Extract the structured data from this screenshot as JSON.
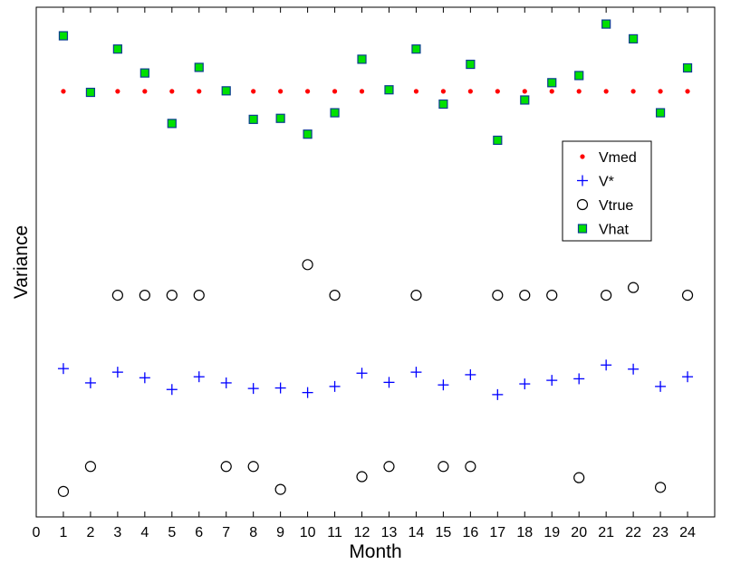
{
  "chart_data": {
    "type": "scatter",
    "title": "",
    "xlabel": "Month",
    "ylabel": "Variance",
    "xlim": [
      0,
      25
    ],
    "ylim": [
      0,
      100
    ],
    "xticks": [
      0,
      1,
      2,
      3,
      4,
      5,
      6,
      7,
      8,
      9,
      10,
      11,
      12,
      13,
      14,
      15,
      16,
      17,
      18,
      19,
      20,
      21,
      22,
      23,
      24
    ],
    "yticks_labeled": false,
    "grid": false,
    "legend_position": "right",
    "x": [
      1,
      2,
      3,
      4,
      5,
      6,
      7,
      8,
      9,
      10,
      11,
      12,
      13,
      14,
      15,
      16,
      17,
      18,
      19,
      20,
      21,
      22,
      23,
      24
    ],
    "series": [
      {
        "name": "Vmed",
        "marker": "dot",
        "color": "#ff0000",
        "values": [
          83.5,
          83.5,
          83.5,
          83.5,
          83.5,
          83.5,
          83.5,
          83.5,
          83.5,
          83.5,
          83.5,
          83.5,
          83.5,
          83.5,
          83.5,
          83.5,
          83.5,
          83.5,
          83.5,
          83.5,
          83.5,
          83.5,
          83.5,
          83.5
        ]
      },
      {
        "name": "V*",
        "marker": "plus",
        "color": "#0000ff",
        "values": [
          29.1,
          26.3,
          28.4,
          27.3,
          25.0,
          27.5,
          26.3,
          25.2,
          25.3,
          24.4,
          25.6,
          28.2,
          26.4,
          28.4,
          25.9,
          27.9,
          24.0,
          26.1,
          26.8,
          27.1,
          29.8,
          29.0,
          25.6,
          27.5
        ]
      },
      {
        "name": "Vtrue",
        "marker": "circle",
        "color": "#000000",
        "values": [
          5.0,
          9.9,
          43.5,
          43.5,
          43.5,
          43.5,
          9.9,
          9.9,
          5.4,
          49.5,
          43.5,
          7.9,
          9.9,
          43.5,
          9.9,
          9.9,
          43.5,
          43.5,
          43.5,
          7.7,
          43.5,
          45.0,
          5.8,
          43.5
        ]
      },
      {
        "name": "Vhat",
        "marker": "square",
        "color": "#00e000",
        "values": [
          94.4,
          83.3,
          91.8,
          87.1,
          77.2,
          88.2,
          83.6,
          78.0,
          78.2,
          75.1,
          79.3,
          89.8,
          83.8,
          91.8,
          81.0,
          88.8,
          73.9,
          81.8,
          85.2,
          86.6,
          96.7,
          93.8,
          79.3,
          88.1
        ]
      }
    ]
  }
}
